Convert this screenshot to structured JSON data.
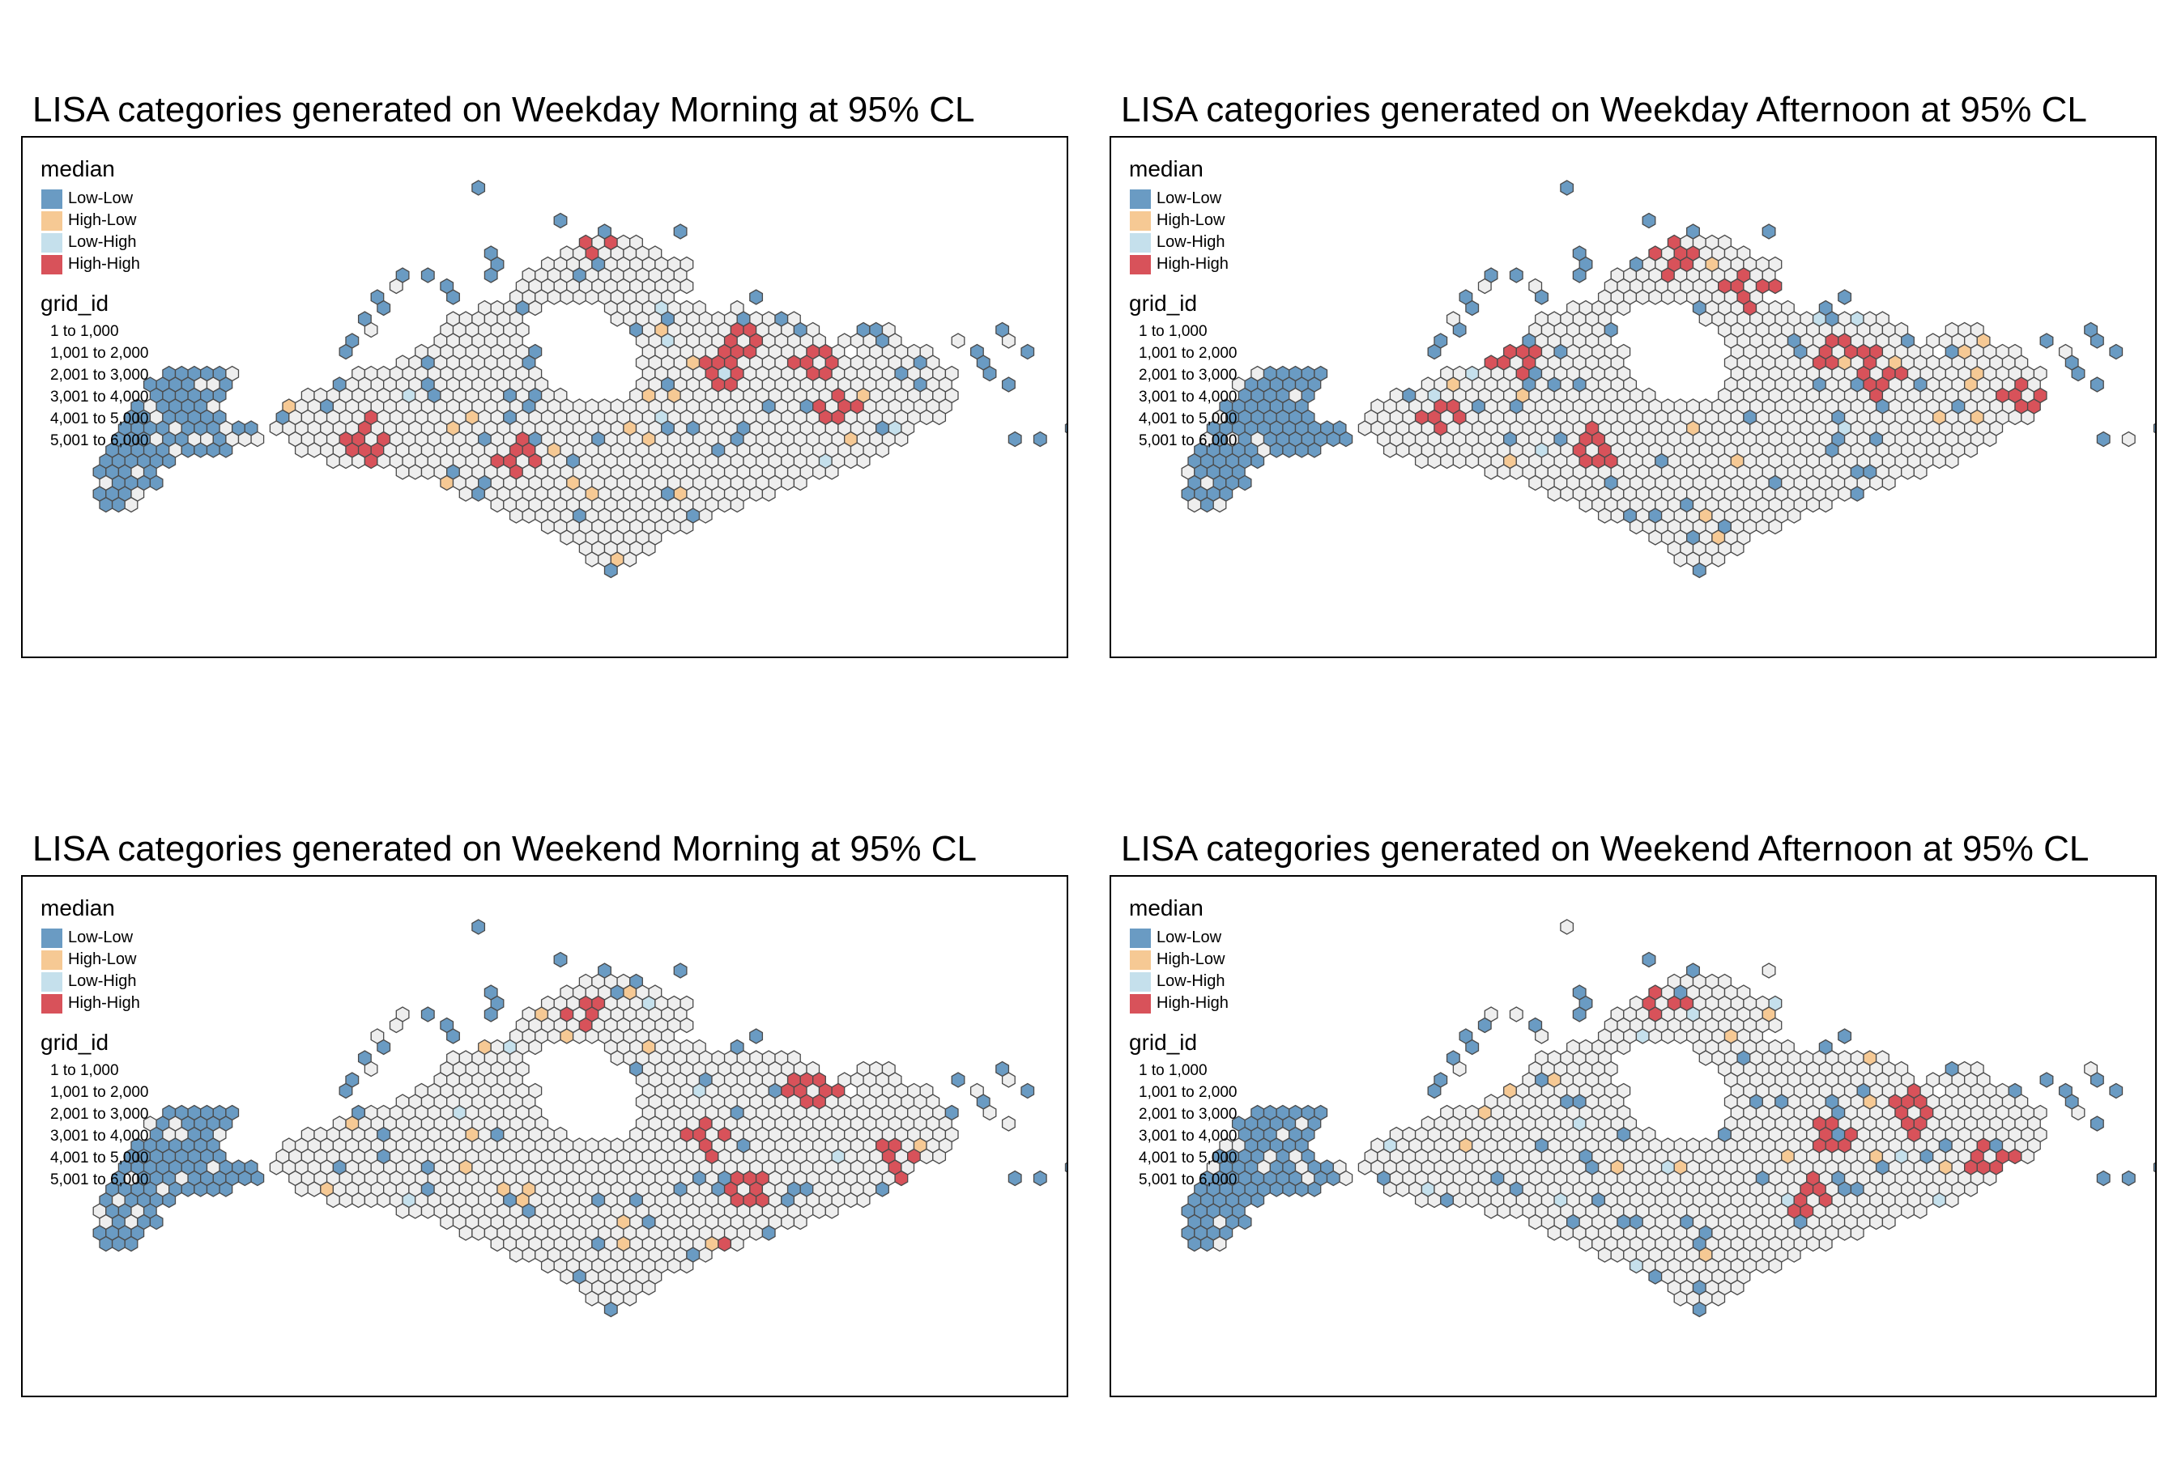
{
  "colors": {
    "low_low": "#6a9bc3",
    "high_low": "#f6c994",
    "low_high": "#c5e0ec",
    "high_high": "#d8525a",
    "not_significant": "#eeeeee",
    "border": "#4a4a4a"
  },
  "legend": {
    "median_title": "median",
    "categories": [
      "Low-Low",
      "High-Low",
      "Low-High",
      "High-High"
    ],
    "grid_title": "grid_id",
    "grid_ranges": [
      "1 to 1,000",
      "1,001 to 2,000",
      "2,001 to 3,000",
      "3,001 to 4,000",
      "4,001 to 5,000",
      "5,001 to 6,000"
    ]
  },
  "panels": [
    {
      "title": "LISA categories generated on Weekday Morning at 95% CL"
    },
    {
      "title": "LISA categories generated on Weekday Afternoon at 95% CL"
    },
    {
      "title": "LISA categories generated on Weekend Morning at 95% CL"
    },
    {
      "title": "LISA categories generated on Weekend Afternoon at 95% CL"
    }
  ]
}
